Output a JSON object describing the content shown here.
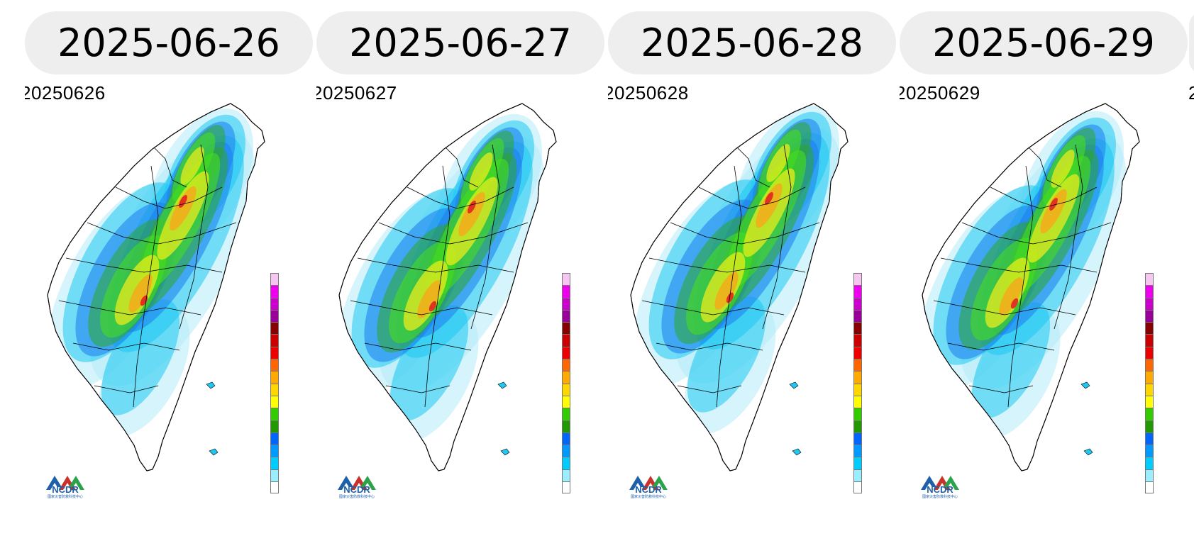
{
  "panels": [
    {
      "date_label": "2025-06-26",
      "image_code": "20250626",
      "logo_text": "NCDR",
      "logo_sub": "國家災害防救科技中心"
    },
    {
      "date_label": "2025-06-27",
      "image_code": "20250627",
      "logo_text": "NCDR",
      "logo_sub": "國家災害防救科技中心"
    },
    {
      "date_label": "2025-06-28",
      "image_code": "20250628",
      "logo_text": "NCDR",
      "logo_sub": "國家災害防救科技中心"
    },
    {
      "date_label": "2025-06-29",
      "image_code": "20250629",
      "logo_text": "NCDR",
      "logo_sub": "國家災害防救科技中心"
    }
  ],
  "edge": {
    "image_code": "2"
  },
  "legend_colors": [
    "#f5c6f0",
    "#ee00ee",
    "#cc00cc",
    "#990099",
    "#880000",
    "#cc0000",
    "#ee0000",
    "#ff6600",
    "#ffaa00",
    "#ffd700",
    "#ffff00",
    "#33cc00",
    "#229900",
    "#0066ff",
    "#0099ff",
    "#00ccff",
    "#99eeff",
    "#ffffff"
  ],
  "rain_colors": {
    "light": "#aee9f7",
    "cyan": "#1ec8f2",
    "blue": "#1e7bef",
    "green": "#2da52d",
    "lime": "#44dd22",
    "yellow": "#f5ef1a",
    "orange": "#f7a81c",
    "red": "#e02222"
  }
}
